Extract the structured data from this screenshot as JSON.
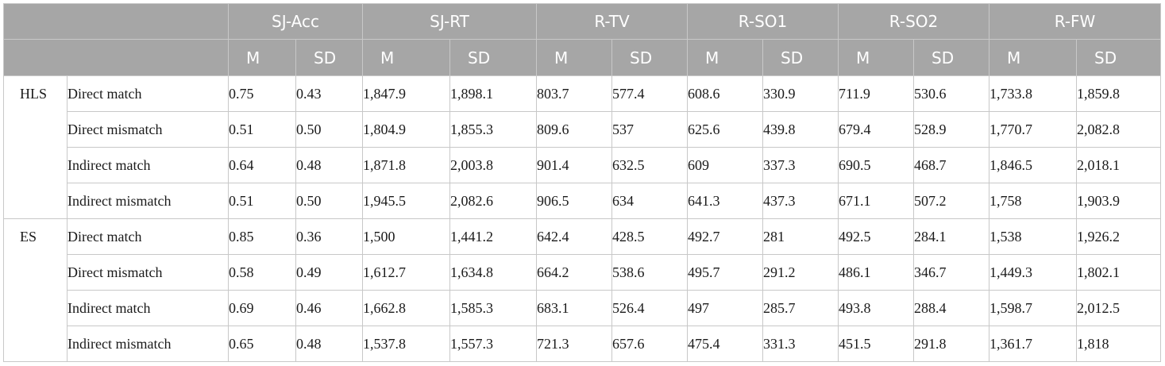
{
  "groups": [
    {
      "label": "SJ-Acc"
    },
    {
      "label": "SJ-RT"
    },
    {
      "label": "R-TV"
    },
    {
      "label": "R-SO1"
    },
    {
      "label": "R-SO2"
    },
    {
      "label": "R-FW"
    }
  ],
  "subheader": {
    "m": "M",
    "sd": "SD"
  },
  "sections": [
    {
      "label": "HLS",
      "rows": [
        {
          "condition": "Direct match",
          "values": [
            "0.75",
            "0.43",
            "1,847.9",
            "1,898.1",
            "803.7",
            "577.4",
            "608.6",
            "330.9",
            "711.9",
            "530.6",
            "1,733.8",
            "1,859.8"
          ]
        },
        {
          "condition": "Direct mismatch",
          "values": [
            "0.51",
            "0.50",
            "1,804.9",
            "1,855.3",
            "809.6",
            "537",
            "625.6",
            "439.8",
            "679.4",
            "528.9",
            "1,770.7",
            "2,082.8"
          ]
        },
        {
          "condition": "Indirect match",
          "values": [
            "0.64",
            "0.48",
            "1,871.8",
            "2,003.8",
            "901.4",
            "632.5",
            "609",
            "337.3",
            "690.5",
            "468.7",
            "1,846.5",
            "2,018.1"
          ]
        },
        {
          "condition": "Indirect mismatch",
          "values": [
            "0.51",
            "0.50",
            "1,945.5",
            "2,082.6",
            "906.5",
            "634",
            "641.3",
            "437.3",
            "671.1",
            "507.2",
            "1,758",
            "1,903.9"
          ]
        }
      ]
    },
    {
      "label": "ES",
      "rows": [
        {
          "condition": "Direct match",
          "values": [
            "0.85",
            "0.36",
            "1,500",
            "1,441.2",
            "642.4",
            "428.5",
            "492.7",
            "281",
            "492.5",
            "284.1",
            "1,538",
            "1,926.2"
          ]
        },
        {
          "condition": "Direct mismatch",
          "values": [
            "0.58",
            "0.49",
            "1,612.7",
            "1,634.8",
            "664.2",
            "538.6",
            "495.7",
            "291.2",
            "486.1",
            "346.7",
            "1,449.3",
            "1,802.1"
          ]
        },
        {
          "condition": "Indirect match",
          "values": [
            "0.69",
            "0.46",
            "1,662.8",
            "1,585.3",
            "683.1",
            "526.4",
            "497",
            "285.7",
            "493.8",
            "288.4",
            "1,598.7",
            "2,012.5"
          ]
        },
        {
          "condition": "Indirect mismatch",
          "values": [
            "0.65",
            "0.48",
            "1,537.8",
            "1,557.3",
            "721.3",
            "657.6",
            "475.4",
            "331.3",
            "451.5",
            "291.8",
            "1,361.7",
            "1,818"
          ]
        }
      ]
    }
  ]
}
